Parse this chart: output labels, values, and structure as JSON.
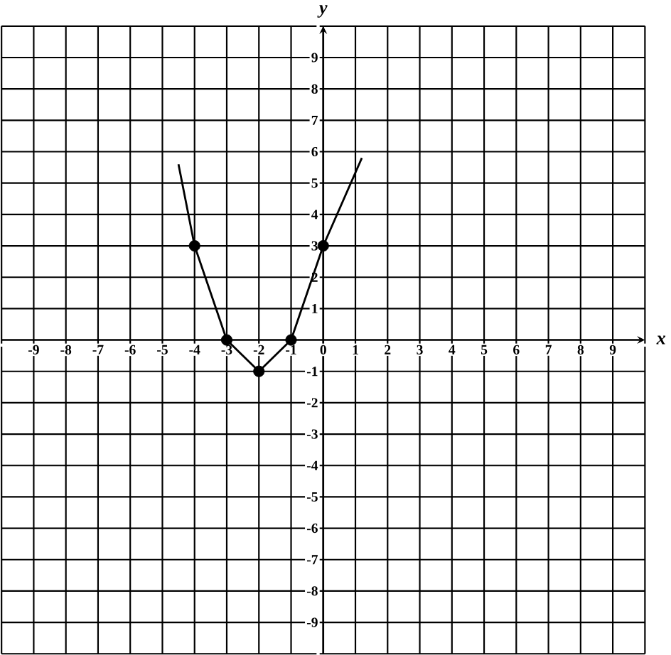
{
  "chart_data": {
    "type": "line",
    "xlabel": "x",
    "ylabel": "y",
    "xlim": [
      -10,
      10
    ],
    "ylim": [
      -10,
      10
    ],
    "xticks": [
      {
        "value": -10,
        "label": null
      },
      -9,
      -8,
      -7,
      -6,
      -5,
      -4,
      -3,
      -2,
      -1,
      0,
      1,
      2,
      3,
      4,
      5,
      6,
      7,
      8,
      9,
      {
        "value": 10,
        "label": null
      }
    ],
    "yticks": [
      {
        "value": -10,
        "label": null
      },
      -9,
      -8,
      -7,
      -6,
      -5,
      -4,
      -3,
      -2,
      -1,
      {
        "value": 0,
        "label": null
      },
      1,
      2,
      3,
      4,
      5,
      6,
      7,
      8,
      9,
      {
        "value": 10,
        "label": null
      }
    ],
    "grid": true,
    "series": [
      {
        "color": "#000000",
        "marker": "none",
        "x": [
          -4.5,
          -4,
          -3,
          -2,
          -1,
          0,
          1.2
        ],
        "values": [
          5.6,
          3,
          0,
          -1,
          0,
          3,
          5.8
        ]
      },
      {
        "type": "scatter",
        "color": "#000000",
        "marker": "circle",
        "x": [
          -4,
          -3,
          -2,
          -1,
          0
        ],
        "values": [
          3,
          0,
          -1,
          0,
          3
        ]
      }
    ]
  }
}
